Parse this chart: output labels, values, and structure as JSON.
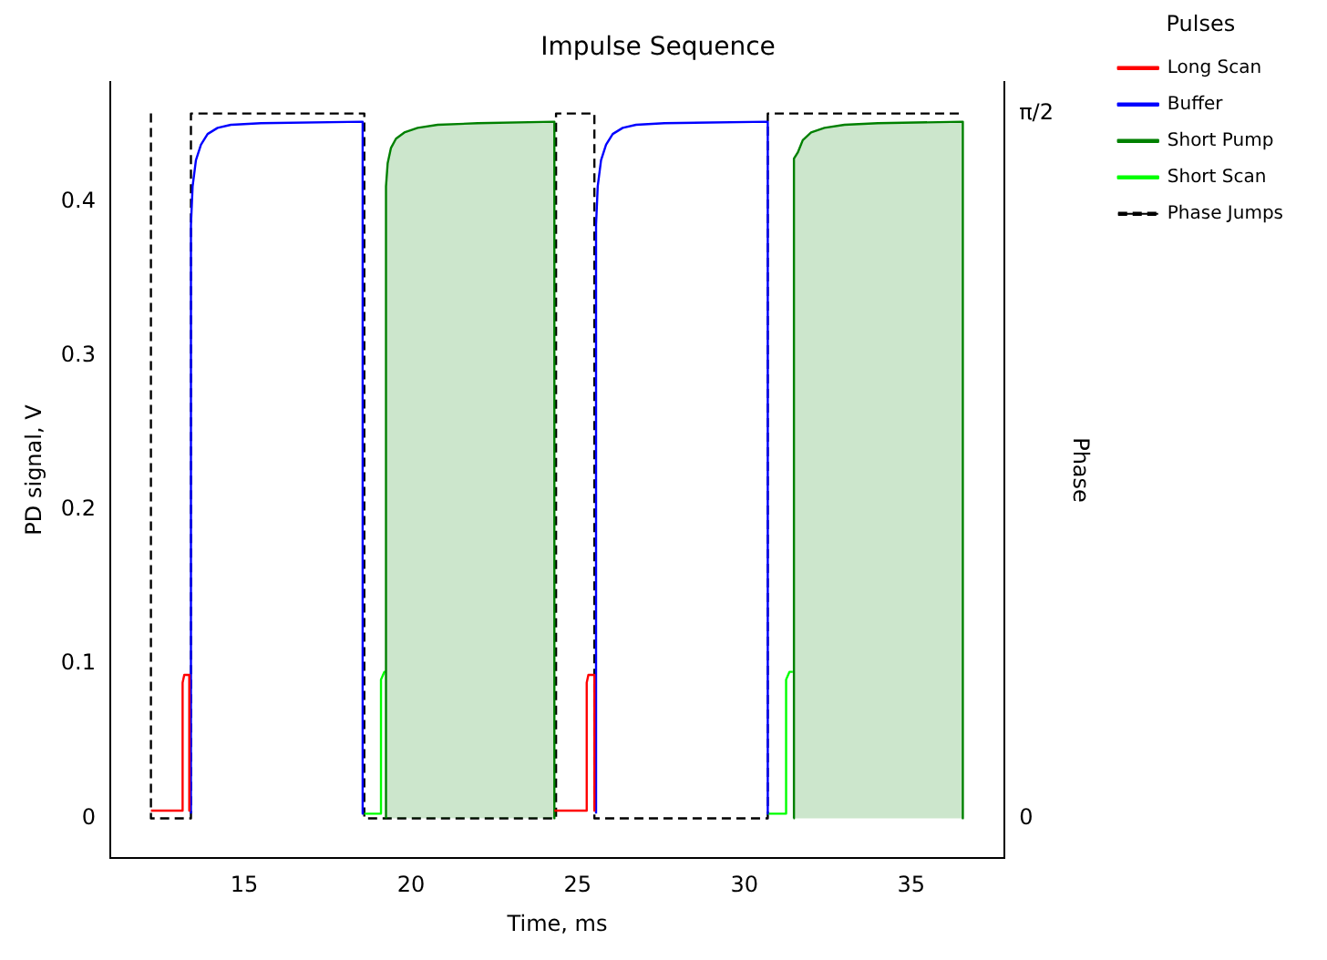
{
  "chart_data": {
    "type": "line",
    "title": "Impulse Sequence",
    "xlabel": "Time, ms",
    "ylabel": "PD signal, V",
    "y2label": "Phase",
    "legend_title": "Pulses",
    "legend": "top right",
    "grid": false,
    "marker": "none",
    "xlim": [
      10.98,
      37.8
    ],
    "xticks": [
      15,
      20,
      25,
      30,
      35
    ],
    "ylim": [
      -0.026,
      0.478
    ],
    "yticks": [
      0.0,
      0.1,
      0.2,
      0.3,
      0.4
    ],
    "y2lim": [
      -0.089,
      1.641
    ],
    "y2ticks": [
      0,
      {
        "value": 1.57,
        "label": "π/2"
      }
    ],
    "series": [
      {
        "name": "Long Scan",
        "type": "line",
        "color": "#ff0000",
        "x": [
          12.2,
          13.15,
          13.15,
          13.2,
          13.35,
          13.35,
          19,
          24.3,
          25.27,
          25.27,
          25.32,
          25.5,
          25.5
        ],
        "values": [
          0.005,
          0.005,
          0.088,
          0.093,
          0.093,
          0.005,
          null,
          0.005,
          0.005,
          0.088,
          0.093,
          0.093,
          0.005
        ]
      },
      {
        "name": "Buffer",
        "type": "line",
        "color": "#0000ff",
        "x": [
          13.4,
          13.4,
          13.45,
          13.55,
          13.7,
          13.9,
          14.2,
          14.6,
          15.5,
          18.55,
          18.55,
          22,
          25.55,
          25.55,
          25.6,
          25.7,
          25.85,
          26.05,
          26.35,
          26.75,
          27.6,
          30.7,
          30.7
        ],
        "values": [
          0.003,
          0.385,
          0.41,
          0.427,
          0.437,
          0.444,
          0.448,
          0.45,
          0.451,
          0.452,
          0.003,
          null,
          0.003,
          0.385,
          0.41,
          0.427,
          0.437,
          0.444,
          0.448,
          0.45,
          0.451,
          0.452,
          0.003
        ]
      },
      {
        "name": "Short Pump",
        "type": "area",
        "color": "#008000",
        "x": [
          19.25,
          19.25,
          19.3,
          19.4,
          19.55,
          19.8,
          20.2,
          20.8,
          22,
          24.3,
          24.3,
          28,
          31.47,
          31.47,
          31.5,
          31.6,
          31.75,
          32,
          32.4,
          33,
          34,
          36.55,
          36.55
        ],
        "values": [
          0,
          0.41,
          0.425,
          0.435,
          0.441,
          0.445,
          0.448,
          0.45,
          0.451,
          0.452,
          0,
          null,
          0,
          0.428,
          0.428,
          0.432,
          0.44,
          0.445,
          0.448,
          0.45,
          0.451,
          0.452,
          0
        ]
      },
      {
        "name": "Short Scan",
        "type": "line",
        "color": "#00ff00",
        "x": [
          18.6,
          19.1,
          19.1,
          19.2,
          19.25,
          25,
          30.7,
          31.25,
          31.25,
          31.35,
          31.45
        ],
        "values": [
          0.003,
          0.003,
          0.09,
          0.095,
          0.095,
          null,
          0.003,
          0.003,
          0.09,
          0.095,
          0.095
        ]
      },
      {
        "name": "Phase Jumps",
        "type": "line",
        "axis": "y2",
        "line_style": "dashed",
        "color": "#000000",
        "x": [
          12.2,
          12.2,
          13.4,
          13.4,
          18.6,
          18.6,
          24.35,
          24.35,
          25.5,
          25.5,
          30.7,
          30.7,
          36.55
        ],
        "values": [
          1.57,
          0,
          0,
          1.57,
          1.57,
          0,
          0,
          1.57,
          1.57,
          0,
          0,
          1.57,
          1.57
        ]
      }
    ]
  }
}
